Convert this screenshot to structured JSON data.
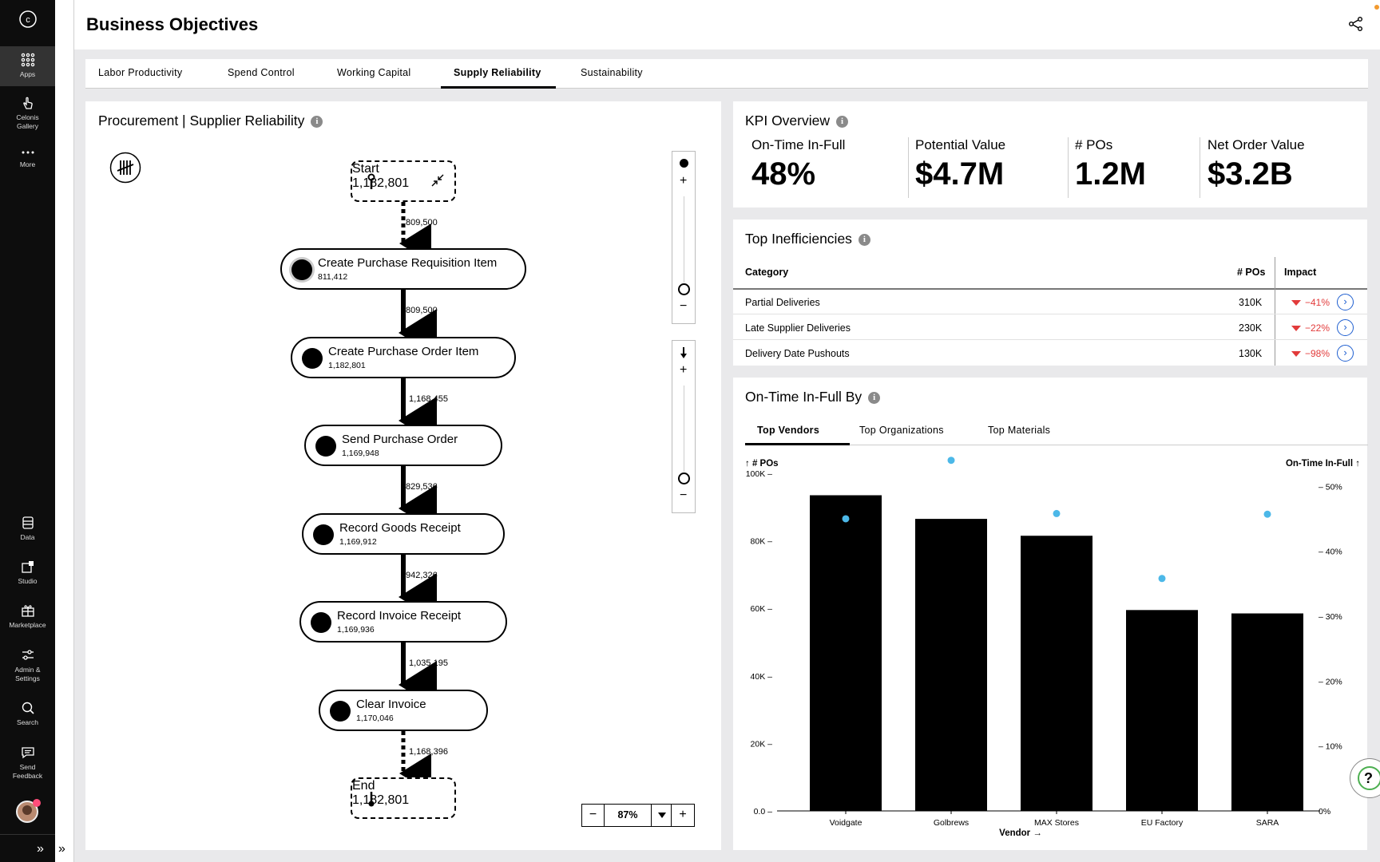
{
  "sidebar": {
    "logo": "c",
    "items": [
      {
        "label": "Apps",
        "icon": "apps-grid-icon"
      },
      {
        "label": "Celonis Gallery",
        "icon": "hand-pointer-icon"
      },
      {
        "label": "More",
        "icon": "more-dots-icon"
      },
      {
        "label": "Data",
        "icon": "database-icon"
      },
      {
        "label": "Studio",
        "icon": "studio-icon"
      },
      {
        "label": "Marketplace",
        "icon": "gift-icon"
      },
      {
        "label": "Admin & Settings",
        "icon": "sliders-icon"
      },
      {
        "label": "Search",
        "icon": "search-icon"
      },
      {
        "label": "Send Feedback",
        "icon": "feedback-icon"
      }
    ],
    "expand": "»"
  },
  "header": {
    "title": "Business Objectives"
  },
  "tabs": [
    "Labor Productivity",
    "Spend Control",
    "Working Capital",
    "Supply Reliability",
    "Sustainability"
  ],
  "active_tab": "Supply Reliability",
  "process": {
    "title": "Procurement | Supplier Reliability",
    "start": {
      "label": "Start",
      "count": "1,182,801"
    },
    "end": {
      "label": "End",
      "count": "1,182,801"
    },
    "nodes": [
      {
        "label": "Create Purchase Requisition Item",
        "count": "811,412"
      },
      {
        "label": "Create Purchase Order Item",
        "count": "1,182,801"
      },
      {
        "label": "Send Purchase Order",
        "count": "1,169,948"
      },
      {
        "label": "Record Goods Receipt",
        "count": "1,169,912"
      },
      {
        "label": "Record Invoice Receipt",
        "count": "1,169,936"
      },
      {
        "label": "Clear Invoice",
        "count": "1,170,046"
      }
    ],
    "edges": [
      "809,500",
      "809,500",
      "1,168,455",
      "829,536",
      "942,326",
      "1,035,195",
      "1,168,396"
    ],
    "zoom": "87%",
    "zoom_minus": "−",
    "zoom_plus": "+",
    "slider_plus": "+",
    "slider_minus": "−"
  },
  "kpi": {
    "title": "KPI Overview",
    "items": [
      {
        "label": "On-Time In-Full",
        "value": "48%"
      },
      {
        "label": "Potential Value",
        "value": "$4.7M"
      },
      {
        "label": "# POs",
        "value": "1.2M"
      },
      {
        "label": "Net Order Value",
        "value": "$3.2B"
      }
    ]
  },
  "inefficiencies": {
    "title": "Top Inefficiencies",
    "headers": {
      "category": "Category",
      "pos": "# POs",
      "impact": "Impact"
    },
    "rows": [
      {
        "category": "Partial Deliveries",
        "pos": "310K",
        "impact": "−41%"
      },
      {
        "category": "Late Supplier Deliveries",
        "pos": "230K",
        "impact": "−22%"
      },
      {
        "category": "Delivery Date Pushouts",
        "pos": "130K",
        "impact": "−98%"
      }
    ]
  },
  "otif": {
    "title": "On-Time In-Full By",
    "tabs": [
      "Top Vendors",
      "Top Organizations",
      "Top Materials"
    ],
    "left_axis_title": "↑ # POs",
    "right_axis_title": "On-Time In-Full ↑",
    "x_axis_title": "Vendor →"
  },
  "chart_data": {
    "type": "bar",
    "categories": [
      "Voidgate",
      "Golbrews",
      "MAX Stores",
      "EU Factory",
      "SARA"
    ],
    "series": [
      {
        "name": "# POs",
        "type": "bar",
        "color": "#000000",
        "axis": "left",
        "values": [
          93500,
          86500,
          81500,
          59500,
          58500
        ]
      },
      {
        "name": "On-Time In-Full",
        "type": "scatter",
        "color": "#4cb8e8",
        "axis": "right",
        "values": [
          0.45,
          0.54,
          0.458,
          0.358,
          0.457
        ]
      }
    ],
    "ylim": [
      0,
      100000
    ],
    "y_ticks": [
      "0.0",
      "20K",
      "40K",
      "60K",
      "80K",
      "100K"
    ],
    "y2lim": [
      0,
      0.52
    ],
    "y2_ticks": [
      "0%",
      "10%",
      "20%",
      "30%",
      "40%",
      "50%"
    ],
    "ylabel": "# POs",
    "y2label": "On-Time In-Full",
    "xlabel": "Vendor"
  },
  "colors": {
    "accent": "#1f5fd0",
    "negative": "#e23b3b",
    "point": "#4cb8e8"
  }
}
